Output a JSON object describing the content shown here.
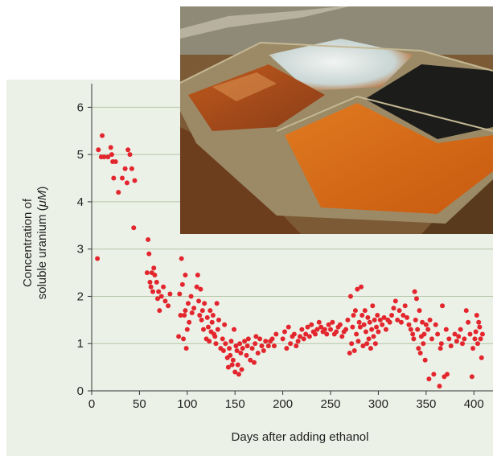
{
  "chart_data": {
    "type": "scatter",
    "title": "",
    "xlabel": "Days after adding ethanol",
    "ylabel_line1": "Concentration of",
    "ylabel_line2_prefix": "soluble uranium (",
    "ylabel_unit": "μM",
    "ylabel_line2_suffix": ")",
    "xlim": [
      0,
      420
    ],
    "ylim": [
      0,
      6.5
    ],
    "x_ticks": [
      0,
      50,
      100,
      150,
      200,
      250,
      300,
      350,
      400
    ],
    "y_ticks": [
      0,
      1,
      2,
      3,
      4,
      5,
      6
    ],
    "grid": "horizontal",
    "point_color": "#e3262d",
    "points": [
      [
        6,
        2.8
      ],
      [
        7,
        5.1
      ],
      [
        10,
        4.95
      ],
      [
        11,
        5.4
      ],
      [
        13,
        4.95
      ],
      [
        17,
        4.95
      ],
      [
        20,
        5.15
      ],
      [
        21,
        5.0
      ],
      [
        22,
        4.85
      ],
      [
        23,
        4.5
      ],
      [
        25,
        4.85
      ],
      [
        28,
        4.2
      ],
      [
        32,
        4.5
      ],
      [
        35,
        4.7
      ],
      [
        37,
        4.4
      ],
      [
        38,
        5.1
      ],
      [
        40,
        5.0
      ],
      [
        42,
        4.7
      ],
      [
        44,
        3.45
      ],
      [
        45,
        4.45
      ],
      [
        58,
        2.5
      ],
      [
        59,
        3.2
      ],
      [
        60,
        2.9
      ],
      [
        61,
        2.3
      ],
      [
        62,
        2.2
      ],
      [
        63,
        2.5
      ],
      [
        64,
        2.1
      ],
      [
        65,
        2.6
      ],
      [
        66,
        2.45
      ],
      [
        68,
        2.3
      ],
      [
        69,
        1.95
      ],
      [
        70,
        2.1
      ],
      [
        71,
        1.7
      ],
      [
        73,
        2.0
      ],
      [
        75,
        2.2
      ],
      [
        77,
        1.9
      ],
      [
        80,
        1.8
      ],
      [
        82,
        2.05
      ],
      [
        91,
        1.15
      ],
      [
        92,
        2.05
      ],
      [
        93,
        1.6
      ],
      [
        94,
        2.8
      ],
      [
        95,
        2.25
      ],
      [
        96,
        1.1
      ],
      [
        97,
        1.6
      ],
      [
        98,
        1.7
      ],
      [
        98,
        2.45
      ],
      [
        99,
        0.9
      ],
      [
        100,
        1.3
      ],
      [
        101,
        1.85
      ],
      [
        102,
        1.45
      ],
      [
        104,
        2.0
      ],
      [
        105,
        1.65
      ],
      [
        107,
        1.75
      ],
      [
        110,
        2.2
      ],
      [
        111,
        2.45
      ],
      [
        112,
        1.9
      ],
      [
        113,
        1.6
      ],
      [
        114,
        2.15
      ],
      [
        115,
        1.5
      ],
      [
        116,
        1.7
      ],
      [
        117,
        1.3
      ],
      [
        118,
        1.85
      ],
      [
        120,
        1.1
      ],
      [
        121,
        1.55
      ],
      [
        122,
        1.35
      ],
      [
        123,
        1.05
      ],
      [
        124,
        1.7
      ],
      [
        125,
        1.25
      ],
      [
        126,
        1.45
      ],
      [
        127,
        1.6
      ],
      [
        128,
        1.2
      ],
      [
        129,
        1.15
      ],
      [
        130,
        1.0
      ],
      [
        131,
        1.85
      ],
      [
        132,
        1.3
      ],
      [
        133,
        1.5
      ],
      [
        135,
        0.9
      ],
      [
        137,
        1.1
      ],
      [
        138,
        0.85
      ],
      [
        139,
        1.4
      ],
      [
        140,
        1.0
      ],
      [
        142,
        0.7
      ],
      [
        143,
        0.5
      ],
      [
        144,
        0.9
      ],
      [
        145,
        0.75
      ],
      [
        146,
        1.05
      ],
      [
        147,
        0.55
      ],
      [
        148,
        0.65
      ],
      [
        149,
        1.3
      ],
      [
        150,
        0.4
      ],
      [
        151,
        0.95
      ],
      [
        152,
        0.85
      ],
      [
        153,
        0.55
      ],
      [
        154,
        0.35
      ],
      [
        155,
        1.0
      ],
      [
        156,
        0.8
      ],
      [
        157,
        0.45
      ],
      [
        158,
        0.9
      ],
      [
        160,
        1.05
      ],
      [
        162,
        0.75
      ],
      [
        163,
        0.95
      ],
      [
        164,
        1.1
      ],
      [
        166,
        0.65
      ],
      [
        168,
        0.9
      ],
      [
        170,
        0.6
      ],
      [
        171,
        1.0
      ],
      [
        172,
        1.15
      ],
      [
        174,
        0.8
      ],
      [
        176,
        1.1
      ],
      [
        178,
        0.95
      ],
      [
        180,
        0.85
      ],
      [
        182,
        1.05
      ],
      [
        185,
        0.95
      ],
      [
        187,
        1.05
      ],
      [
        189,
        1.1
      ],
      [
        191,
        0.95
      ],
      [
        193,
        1.2
      ],
      [
        200,
        1.1
      ],
      [
        202,
        1.25
      ],
      [
        204,
        0.9
      ],
      [
        206,
        1.35
      ],
      [
        208,
        1.0
      ],
      [
        210,
        1.15
      ],
      [
        212,
        1.2
      ],
      [
        214,
        0.95
      ],
      [
        216,
        1.05
      ],
      [
        218,
        1.15
      ],
      [
        220,
        1.3
      ],
      [
        222,
        1.1
      ],
      [
        224,
        1.2
      ],
      [
        226,
        1.35
      ],
      [
        228,
        1.15
      ],
      [
        230,
        1.4
      ],
      [
        232,
        1.25
      ],
      [
        234,
        1.2
      ],
      [
        236,
        1.3
      ],
      [
        238,
        1.45
      ],
      [
        240,
        1.35
      ],
      [
        242,
        1.25
      ],
      [
        244,
        1.3
      ],
      [
        246,
        1.2
      ],
      [
        248,
        1.4
      ],
      [
        250,
        1.3
      ],
      [
        252,
        1.45
      ],
      [
        254,
        1.2
      ],
      [
        256,
        1.25
      ],
      [
        258,
        1.35
      ],
      [
        260,
        1.4
      ],
      [
        262,
        1.15
      ],
      [
        264,
        1.25
      ],
      [
        266,
        1.3
      ],
      [
        268,
        1.5
      ],
      [
        270,
        0.8
      ],
      [
        271,
        2.0
      ],
      [
        272,
        1.0
      ],
      [
        273,
        1.35
      ],
      [
        274,
        1.6
      ],
      [
        275,
        0.85
      ],
      [
        276,
        1.7
      ],
      [
        277,
        1.2
      ],
      [
        278,
        2.15
      ],
      [
        279,
        1.05
      ],
      [
        280,
        1.45
      ],
      [
        281,
        1.35
      ],
      [
        282,
        2.2
      ],
      [
        283,
        1.6
      ],
      [
        284,
        0.95
      ],
      [
        285,
        1.4
      ],
      [
        286,
        1.7
      ],
      [
        287,
        1.25
      ],
      [
        288,
        1.0
      ],
      [
        289,
        1.55
      ],
      [
        290,
        1.1
      ],
      [
        291,
        1.45
      ],
      [
        292,
        0.9
      ],
      [
        293,
        1.3
      ],
      [
        294,
        1.8
      ],
      [
        295,
        1.15
      ],
      [
        296,
        1.5
      ],
      [
        297,
        1.0
      ],
      [
        298,
        1.35
      ],
      [
        299,
        1.6
      ],
      [
        300,
        1.25
      ],
      [
        302,
        1.5
      ],
      [
        304,
        1.4
      ],
      [
        306,
        1.55
      ],
      [
        308,
        1.3
      ],
      [
        310,
        1.5
      ],
      [
        312,
        1.45
      ],
      [
        314,
        1.6
      ],
      [
        316,
        1.75
      ],
      [
        318,
        1.9
      ],
      [
        320,
        1.5
      ],
      [
        322,
        1.7
      ],
      [
        324,
        1.45
      ],
      [
        326,
        1.6
      ],
      [
        328,
        1.8
      ],
      [
        330,
        1.55
      ],
      [
        332,
        1.4
      ],
      [
        334,
        1.3
      ],
      [
        336,
        1.2
      ],
      [
        337,
        1.1
      ],
      [
        338,
        2.1
      ],
      [
        339,
        1.5
      ],
      [
        340,
        1.95
      ],
      [
        341,
        1.3
      ],
      [
        342,
        0.9
      ],
      [
        343,
        1.7
      ],
      [
        344,
        0.8
      ],
      [
        345,
        1.15
      ],
      [
        346,
        1.45
      ],
      [
        347,
        1.0
      ],
      [
        348,
        1.2
      ],
      [
        349,
        0.65
      ],
      [
        350,
        1.4
      ],
      [
        352,
        1.3
      ],
      [
        353,
        0.25
      ],
      [
        354,
        1.5
      ],
      [
        356,
        1.1
      ],
      [
        358,
        0.35
      ],
      [
        360,
        1.4
      ],
      [
        362,
        1.2
      ],
      [
        364,
        0.1
      ],
      [
        365,
        0.9
      ],
      [
        366,
        1.0
      ],
      [
        367,
        1.8
      ],
      [
        369,
        0.3
      ],
      [
        371,
        1.3
      ],
      [
        372,
        0.35
      ],
      [
        374,
        1.1
      ],
      [
        376,
        0.95
      ],
      [
        380,
        1.2
      ],
      [
        382,
        1.05
      ],
      [
        384,
        1.15
      ],
      [
        386,
        1.3
      ],
      [
        388,
        1.0
      ],
      [
        390,
        1.1
      ],
      [
        392,
        1.7
      ],
      [
        394,
        1.45
      ],
      [
        396,
        1.2
      ],
      [
        398,
        0.3
      ],
      [
        399,
        0.9
      ],
      [
        401,
        1.1
      ],
      [
        402,
        1.25
      ],
      [
        403,
        1.6
      ],
      [
        404,
        1.0
      ],
      [
        405,
        1.45
      ],
      [
        406,
        1.35
      ],
      [
        407,
        1.1
      ],
      [
        408,
        0.7
      ],
      [
        409,
        1.2
      ]
    ]
  },
  "photo": {
    "subject": "aerial photo of colored waste ponds",
    "colors": {
      "orange_pond": "#d86a18",
      "brown_pond": "#a04a1c",
      "dark_pond": "#1a1a18",
      "white_pond": "#d9dedc",
      "trees": "#7a4a24",
      "ground": "#8a7a5a"
    }
  }
}
